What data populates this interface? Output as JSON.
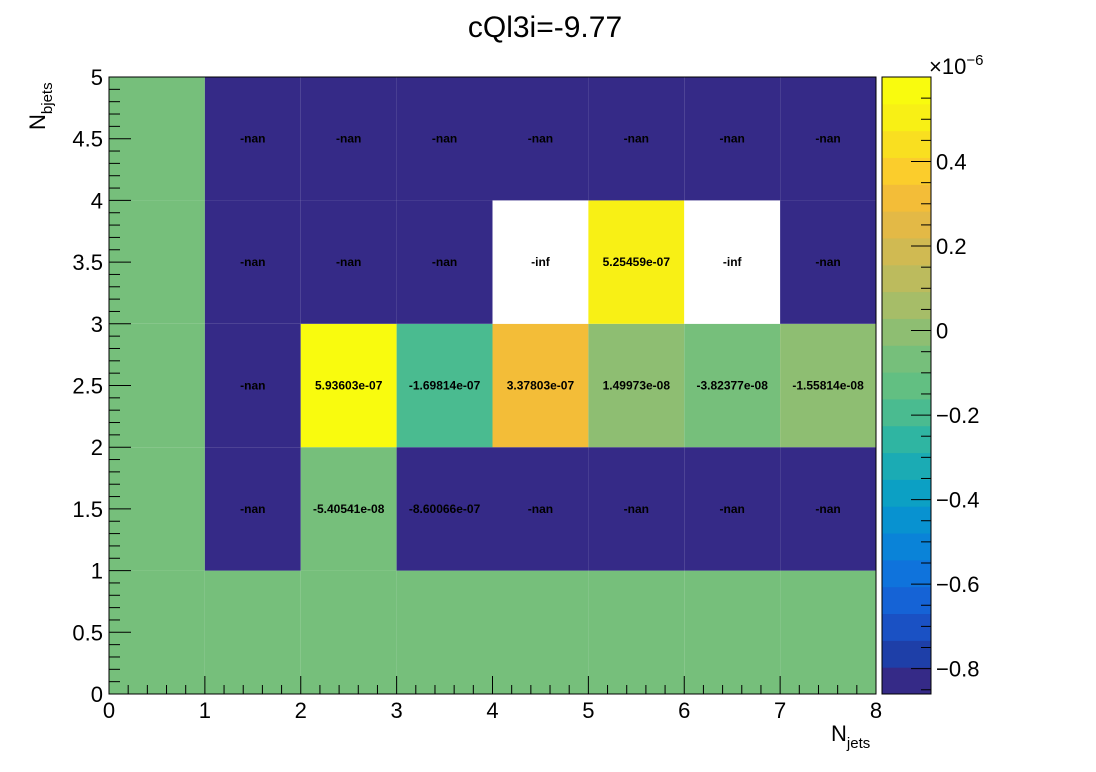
{
  "chart_data": {
    "type": "heatmap",
    "title": "cQl3i=-9.77",
    "xlabel": "N",
    "xlabel_sub": "jets",
    "ylabel": "N",
    "ylabel_sub": "bjets",
    "xlim": [
      0,
      8
    ],
    "ylim": [
      0,
      5
    ],
    "x_edges": [
      0,
      1,
      2,
      3,
      4,
      5,
      6,
      7,
      8
    ],
    "y_edges": [
      0,
      1,
      2,
      3,
      4,
      5
    ],
    "x_ticks": [
      "0",
      "1",
      "2",
      "3",
      "4",
      "5",
      "6",
      "7",
      "8"
    ],
    "y_ticks": [
      "0",
      "0.5",
      "1",
      "1.5",
      "2",
      "2.5",
      "3",
      "3.5",
      "4",
      "4.5",
      "5"
    ],
    "colorbar": {
      "min": -0.86,
      "max": 0.6,
      "exponent_label": "×10",
      "exponent_power": "−6",
      "ticks": [
        "0.4",
        "0.2",
        "0",
        "−0.2",
        "−0.4",
        "−0.6",
        "−0.8"
      ],
      "tick_values": [
        0.4,
        0.2,
        0,
        -0.2,
        -0.4,
        -0.6,
        -0.8
      ],
      "palette": [
        "#352a87",
        "#1e3fa8",
        "#1a51c4",
        "#1563d6",
        "#0f73dc",
        "#0a83d8",
        "#0892d0",
        "#0ca0c4",
        "#1babb4",
        "#2fb5a2",
        "#4abb90",
        "#62bf82",
        "#76bf7b",
        "#8ebe72",
        "#a6bd68",
        "#bcbb5d",
        "#d0ba52",
        "#e3b946",
        "#f3bd38",
        "#fbcd2c",
        "#f9df20",
        "#f8f015",
        "#f9fb0e"
      ]
    },
    "cells": [
      {
        "x": 0,
        "y": 0,
        "value": 0,
        "label": ""
      },
      {
        "x": 1,
        "y": 0,
        "value": 0,
        "label": ""
      },
      {
        "x": 2,
        "y": 0,
        "value": 0,
        "label": ""
      },
      {
        "x": 3,
        "y": 0,
        "value": 0,
        "label": ""
      },
      {
        "x": 4,
        "y": 0,
        "value": 0,
        "label": ""
      },
      {
        "x": 5,
        "y": 0,
        "value": 0,
        "label": ""
      },
      {
        "x": 6,
        "y": 0,
        "value": 0,
        "label": ""
      },
      {
        "x": 7,
        "y": 0,
        "value": 0,
        "label": ""
      },
      {
        "x": 0,
        "y": 1,
        "value": 0,
        "label": ""
      },
      {
        "x": 1,
        "y": 1,
        "value": null,
        "kind": "nan",
        "label": "-nan"
      },
      {
        "x": 2,
        "y": 1,
        "value": -5.40541e-08,
        "label": "-5.40541e-08"
      },
      {
        "x": 3,
        "y": 1,
        "value": -8.60066e-07,
        "label": "-8.60066e-07"
      },
      {
        "x": 4,
        "y": 1,
        "value": null,
        "kind": "nan",
        "label": "-nan"
      },
      {
        "x": 5,
        "y": 1,
        "value": null,
        "kind": "nan",
        "label": "-nan"
      },
      {
        "x": 6,
        "y": 1,
        "value": null,
        "kind": "nan",
        "label": "-nan"
      },
      {
        "x": 7,
        "y": 1,
        "value": null,
        "kind": "nan",
        "label": "-nan"
      },
      {
        "x": 0,
        "y": 2,
        "value": 0,
        "label": ""
      },
      {
        "x": 1,
        "y": 2,
        "value": null,
        "kind": "nan",
        "label": "-nan"
      },
      {
        "x": 2,
        "y": 2,
        "value": 5.93603e-07,
        "label": "5.93603e-07"
      },
      {
        "x": 3,
        "y": 2,
        "value": -1.69814e-07,
        "label": "-1.69814e-07"
      },
      {
        "x": 4,
        "y": 2,
        "value": 3.37803e-07,
        "label": "3.37803e-07"
      },
      {
        "x": 5,
        "y": 2,
        "value": 1.49973e-08,
        "label": "1.49973e-08"
      },
      {
        "x": 6,
        "y": 2,
        "value": -3.82377e-08,
        "label": "-3.82377e-08"
      },
      {
        "x": 7,
        "y": 2,
        "value": -1.55814e-08,
        "label": "-1.55814e-08"
      },
      {
        "x": 0,
        "y": 3,
        "value": 0,
        "label": ""
      },
      {
        "x": 1,
        "y": 3,
        "value": null,
        "kind": "nan",
        "label": "-nan"
      },
      {
        "x": 2,
        "y": 3,
        "value": null,
        "kind": "nan",
        "label": "-nan"
      },
      {
        "x": 3,
        "y": 3,
        "value": null,
        "kind": "nan",
        "label": "-nan"
      },
      {
        "x": 4,
        "y": 3,
        "value": null,
        "kind": "inf",
        "label": "-inf"
      },
      {
        "x": 5,
        "y": 3,
        "value": 5.25459e-07,
        "label": "5.25459e-07"
      },
      {
        "x": 6,
        "y": 3,
        "value": null,
        "kind": "inf",
        "label": "-inf"
      },
      {
        "x": 7,
        "y": 3,
        "value": null,
        "kind": "nan",
        "label": "-nan"
      },
      {
        "x": 0,
        "y": 4,
        "value": 0,
        "label": ""
      },
      {
        "x": 1,
        "y": 4,
        "value": null,
        "kind": "nan",
        "label": "-nan"
      },
      {
        "x": 2,
        "y": 4,
        "value": null,
        "kind": "nan",
        "label": "-nan"
      },
      {
        "x": 3,
        "y": 4,
        "value": null,
        "kind": "nan",
        "label": "-nan"
      },
      {
        "x": 4,
        "y": 4,
        "value": null,
        "kind": "nan",
        "label": "-nan"
      },
      {
        "x": 5,
        "y": 4,
        "value": null,
        "kind": "nan",
        "label": "-nan"
      },
      {
        "x": 6,
        "y": 4,
        "value": null,
        "kind": "nan",
        "label": "-nan"
      },
      {
        "x": 7,
        "y": 4,
        "value": null,
        "kind": "nan",
        "label": "-nan"
      }
    ],
    "colors": {
      "nan": "#352a87",
      "inf": "#ffffff",
      "zero": "#76bf7b"
    }
  }
}
